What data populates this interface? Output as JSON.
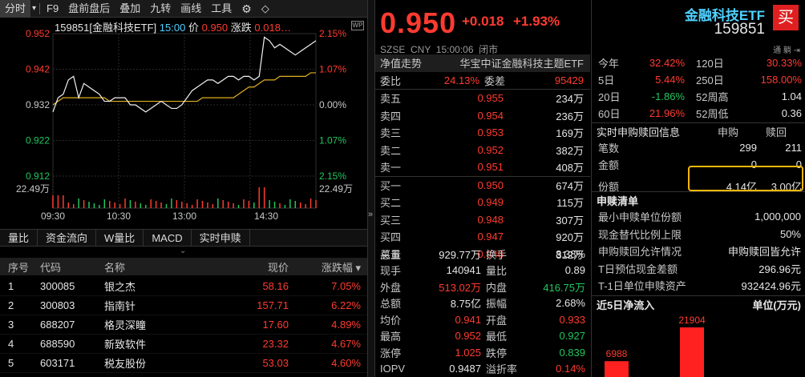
{
  "toolbar": {
    "items": [
      "分时",
      "F9",
      "盘前盘后",
      "叠加",
      "九转",
      "画线",
      "工具"
    ],
    "gear": "⚙",
    "back": "◇"
  },
  "chart_header": {
    "code_name": "159851[金融科技ETF]",
    "time": "15:00",
    "price_label": "价",
    "price": "0.950",
    "chg_label": "涨跌",
    "chg": "0.018…"
  },
  "chart_data": {
    "type": "line",
    "price_ticks": [
      "0.952",
      "0.942",
      "0.932",
      "0.922",
      "0.912"
    ],
    "pct_ticks": [
      "2.15%",
      "1.07%",
      "0.00%",
      "1.07%",
      "2.15%"
    ],
    "vol_tick": "22.49万",
    "vol_tick_right": "22.49万",
    "x_ticks": [
      "09:30",
      "10:30",
      "13:00",
      "14:30"
    ],
    "ylim": [
      0.912,
      0.952
    ],
    "price_series": [
      0.93,
      0.934,
      0.935,
      0.939,
      0.94,
      0.934,
      0.938,
      0.937,
      0.936,
      0.935,
      0.933,
      0.933,
      0.934,
      0.934,
      0.934,
      0.932,
      0.932,
      0.931,
      0.93,
      0.931,
      0.932,
      0.933,
      0.932,
      0.931,
      0.931,
      0.932,
      0.934,
      0.936,
      0.937,
      0.938,
      0.939,
      0.939,
      0.938,
      0.939,
      0.94,
      0.94,
      0.939,
      0.94,
      0.94,
      0.939,
      0.94,
      0.951,
      0.95,
      0.948,
      0.949,
      0.948,
      0.947,
      0.946,
      0.947,
      0.948,
      0.949,
      0.95
    ],
    "avg_series": [
      0.932,
      0.933,
      0.934,
      0.934,
      0.934,
      0.934,
      0.934,
      0.934,
      0.934,
      0.934,
      0.934,
      0.933,
      0.933,
      0.933,
      0.933,
      0.933,
      0.933,
      0.933,
      0.933,
      0.933,
      0.933,
      0.933,
      0.933,
      0.933,
      0.933,
      0.933,
      0.933,
      0.933,
      0.933,
      0.934,
      0.934,
      0.934,
      0.934,
      0.934,
      0.934,
      0.934,
      0.935,
      0.936,
      0.937,
      0.937,
      0.938,
      0.939,
      0.939,
      0.939,
      0.94,
      0.94,
      0.94,
      0.94,
      0.94,
      0.94,
      0.941,
      0.941
    ]
  },
  "bottom_tabs": [
    "量比",
    "资金流向",
    "W量比",
    "MACD",
    "实时申赎"
  ],
  "list": {
    "headers": [
      "序号",
      "代码",
      "名称",
      "现价",
      "涨跌幅 ▾"
    ],
    "rows": [
      [
        "1",
        "300085",
        "银之杰",
        "58.16",
        "7.05%"
      ],
      [
        "2",
        "300803",
        "指南针",
        "157.71",
        "6.22%"
      ],
      [
        "3",
        "688207",
        "格灵深瞳",
        "17.60",
        "4.89%"
      ],
      [
        "4",
        "688590",
        "新致软件",
        "23.32",
        "4.67%"
      ],
      [
        "5",
        "603171",
        "税友股份",
        "53.03",
        "4.60%"
      ]
    ]
  },
  "quote": {
    "price": "0.950",
    "chg": "+0.018",
    "pct": "+1.93%",
    "name": "金融科技ETF",
    "code": "159851",
    "buy_btn": "买",
    "sub": "SZSE  CNY  15:00:06  闭市",
    "trend_label": "净值走势",
    "index_name": "华宝中证金融科技主题ETF",
    "weibi_label": "委比",
    "weibi": "24.13%",
    "weicha_label": "委差",
    "weicha": "95429",
    "sells": [
      [
        "卖五",
        "0.955",
        "234万"
      ],
      [
        "卖四",
        "0.954",
        "236万"
      ],
      [
        "卖三",
        "0.953",
        "169万"
      ],
      [
        "卖二",
        "0.952",
        "382万"
      ],
      [
        "卖一",
        "0.951",
        "408万"
      ]
    ],
    "buys": [
      [
        "买一",
        "0.950",
        "674万"
      ],
      [
        "买二",
        "0.949",
        "115万"
      ],
      [
        "买三",
        "0.948",
        "307万"
      ],
      [
        "买四",
        "0.947",
        "920万"
      ],
      [
        "买五",
        "0.946",
        "312万"
      ]
    ],
    "stats": [
      [
        "总量",
        "929.77万",
        "换手",
        "8.38%"
      ],
      [
        "现手",
        "140941",
        "量比",
        "0.89"
      ],
      [
        "外盘",
        "513.02万",
        "内盘",
        "416.75万"
      ],
      [
        "总额",
        "8.75亿",
        "振幅",
        "2.68%"
      ],
      [
        "均价",
        "0.941",
        "开盘",
        "0.933"
      ],
      [
        "最高",
        "0.952",
        "最低",
        "0.927"
      ],
      [
        "涨停",
        "1.025",
        "跌停",
        "0.839"
      ],
      [
        "IOPV",
        "0.9487",
        "溢折率",
        "0.14%"
      ]
    ]
  },
  "right": {
    "icons": "通 躺 ⇥",
    "perf": [
      [
        "今年",
        "32.42%",
        "120日",
        "30.33%"
      ],
      [
        "5日",
        "5.44%",
        "250日",
        "158.00%"
      ],
      [
        "20日",
        "-1.86%",
        "52周高",
        "1.04"
      ],
      [
        "60日",
        "21.96%",
        "52周低",
        "0.36"
      ]
    ],
    "sg_title": "实时申购赎回信息",
    "sg_h1": "申购",
    "sg_h2": "赎回",
    "sg_rows": [
      [
        "笔数",
        "299",
        "211"
      ],
      [
        "金额",
        "0",
        "0"
      ],
      [
        "份额",
        "4.14亿",
        "3.00亿"
      ]
    ],
    "qd_title": "申赎清单",
    "qd_rows": [
      [
        "最小申赎单位份额",
        "1,000,000"
      ],
      [
        "现金替代比例上限",
        "50%"
      ],
      [
        "申购赎回允许情况",
        "申购赎回皆允许"
      ],
      [
        "T日预估现金差额",
        "296.96元"
      ],
      [
        "T-1日单位申赎资产",
        "932424.96元"
      ]
    ],
    "flow_title": "近5日净流入",
    "flow_unit": "单位(万元)",
    "flow_values": [
      6988,
      21904
    ]
  }
}
